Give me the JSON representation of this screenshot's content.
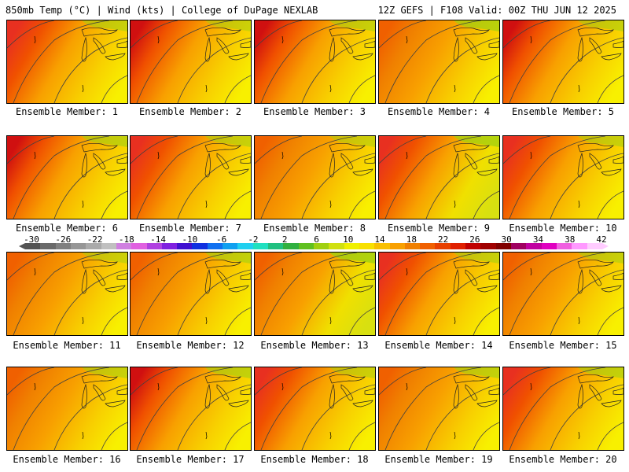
{
  "header": {
    "left": "850mb Temp (°C) | Wind (kts) | College of DuPage NEXLAB",
    "right": "12Z GEFS | F108 Valid: 00Z THU JUN 12 2025"
  },
  "members": [
    {
      "label": "Ensemble Member: 1",
      "base": "orange",
      "west_hot": 0.7,
      "east_cool": 0.3
    },
    {
      "label": "Ensemble Member: 2",
      "base": "orange",
      "west_hot": 0.9,
      "east_cool": 0.2
    },
    {
      "label": "Ensemble Member: 3",
      "base": "orange",
      "west_hot": 1.0,
      "east_cool": 0.3
    },
    {
      "label": "Ensemble Member: 4",
      "base": "orange",
      "west_hot": 0.3,
      "east_cool": 0.6
    },
    {
      "label": "Ensemble Member: 5",
      "base": "orange",
      "west_hot": 0.9,
      "east_cool": 0.3
    },
    {
      "label": "Ensemble Member: 6",
      "base": "orange",
      "west_hot": 1.0,
      "east_cool": 0.4
    },
    {
      "label": "Ensemble Member: 7",
      "base": "orange",
      "west_hot": 0.8,
      "east_cool": 0.3
    },
    {
      "label": "Ensemble Member: 8",
      "base": "orange",
      "west_hot": 0.6,
      "east_cool": 0.2
    },
    {
      "label": "Ensemble Member: 9",
      "base": "orange",
      "west_hot": 0.8,
      "east_cool": 0.7
    },
    {
      "label": "Ensemble Member: 10",
      "base": "orange",
      "west_hot": 0.7,
      "east_cool": 0.3
    },
    {
      "label": "Ensemble Member: 11",
      "base": "orange",
      "west_hot": 0.4,
      "east_cool": 0.2
    },
    {
      "label": "Ensemble Member: 12",
      "base": "orange",
      "west_hot": 0.5,
      "east_cool": 0.4
    },
    {
      "label": "Ensemble Member: 13",
      "base": "orange",
      "west_hot": 0.5,
      "east_cool": 0.8
    },
    {
      "label": "Ensemble Member: 14",
      "base": "orange",
      "west_hot": 0.8,
      "east_cool": 0.3
    },
    {
      "label": "Ensemble Member: 15",
      "base": "orange",
      "west_hot": 0.6,
      "east_cool": 0.3
    },
    {
      "label": "Ensemble Member: 16",
      "base": "orange",
      "west_hot": 0.6,
      "east_cool": 0.3
    },
    {
      "label": "Ensemble Member: 17",
      "base": "orange",
      "west_hot": 0.9,
      "east_cool": 0.4
    },
    {
      "label": "Ensemble Member: 18",
      "base": "orange",
      "west_hot": 0.7,
      "east_cool": 0.2
    },
    {
      "label": "Ensemble Member: 19",
      "base": "orange",
      "west_hot": 0.6,
      "east_cool": 0.4
    },
    {
      "label": "Ensemble Member: 20",
      "base": "orange",
      "west_hot": 0.8,
      "east_cool": 0.4
    }
  ],
  "colorbar": {
    "ticks": [
      "-30",
      "-26",
      "-22",
      "-18",
      "-14",
      "-10",
      "-6",
      "-2",
      "2",
      "6",
      "10",
      "14",
      "18",
      "22",
      "26",
      "30",
      "34",
      "38",
      "42"
    ],
    "colors": [
      "#545454",
      "#6a6a6a",
      "#808080",
      "#969696",
      "#aaaaaa",
      "#c0c0c0",
      "#d080e0",
      "#e060e0",
      "#b040e0",
      "#8020e0",
      "#4010d0",
      "#1030e0",
      "#1070f0",
      "#10a0f0",
      "#20d0f0",
      "#20e0c0",
      "#20c080",
      "#30b040",
      "#60c020",
      "#a0d010",
      "#d0e010",
      "#f0f000",
      "#f8e000",
      "#f8c000",
      "#f8a000",
      "#f08000",
      "#f06000",
      "#e84000",
      "#e02000",
      "#c00000",
      "#a00000",
      "#800000",
      "#a00060",
      "#c000a0",
      "#e000c0",
      "#f060e0",
      "#ff99ff",
      "#ffccff"
    ]
  }
}
